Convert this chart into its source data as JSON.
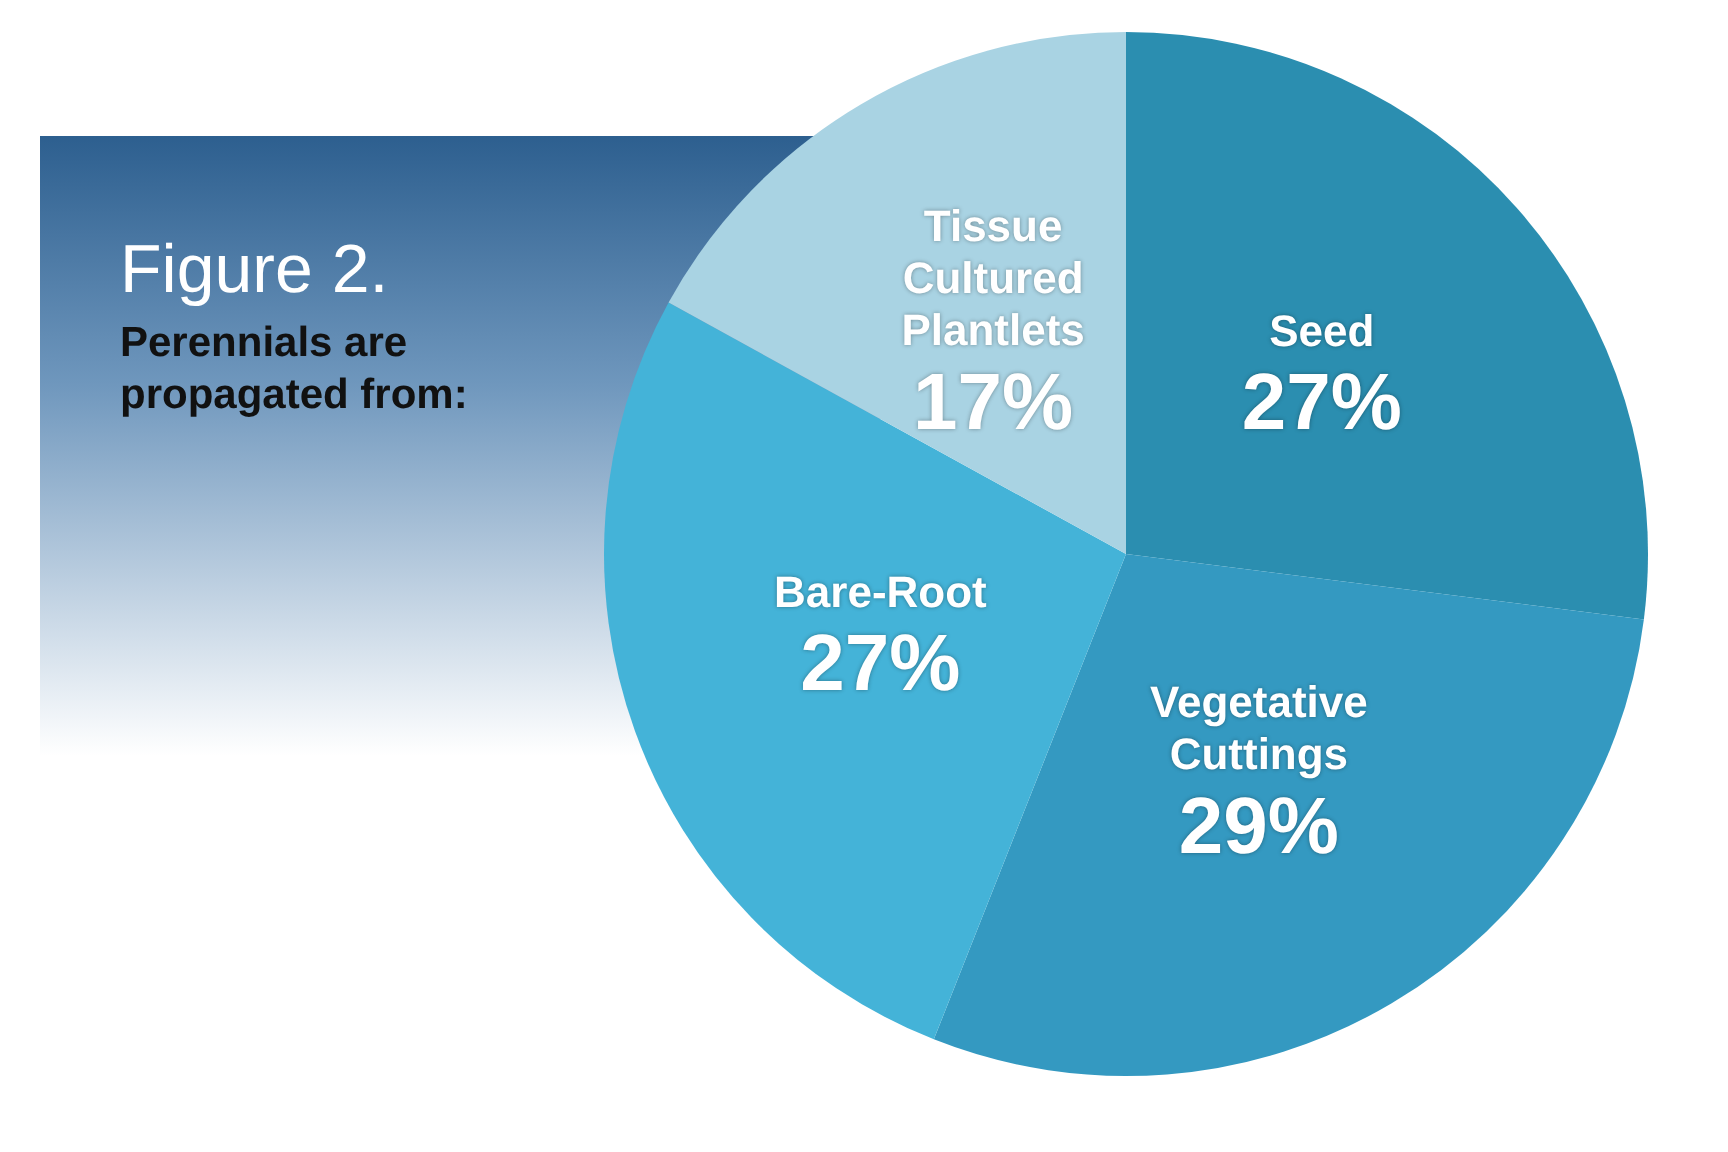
{
  "chart_data": {
    "type": "pie",
    "title": "Figure 2.",
    "subtitle": "Perennials are propagated from:",
    "categories": [
      "Seed",
      "Vegetative Cuttings",
      "Bare-Root",
      "Tissue Cultured Plantlets"
    ],
    "values": [
      27,
      29,
      27,
      17
    ],
    "value_labels": [
      "27%",
      "29%",
      "27%",
      "17%"
    ],
    "colors": [
      "#2b8eb0",
      "#3499c1",
      "#44b3d8",
      "#a9d3e3"
    ],
    "legend": false
  }
}
